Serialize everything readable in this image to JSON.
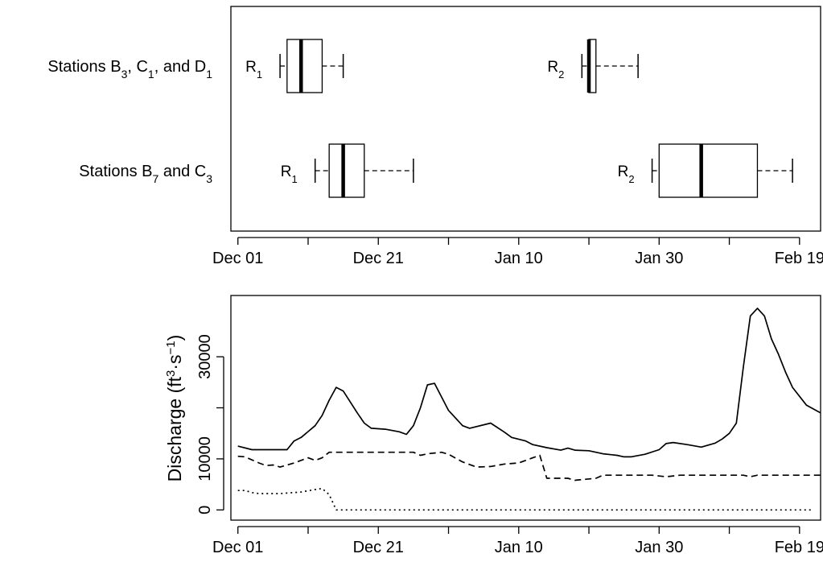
{
  "chart_data": [
    {
      "type": "boxplot",
      "x_axis": {
        "unit": "date",
        "min": "2001-11-30",
        "max": "2002-02-22",
        "ticks": [
          {
            "date": "2001-12-01",
            "label": "Dec 01"
          },
          {
            "date": "2001-12-21",
            "label": "Dec 21"
          },
          {
            "date": "2002-01-10",
            "label": "Jan 10"
          },
          {
            "date": "2002-01-30",
            "label": "Jan 30"
          },
          {
            "date": "2002-02-19",
            "label": "Feb 19"
          }
        ],
        "minor_ticks": [
          "2001-12-11",
          "2001-12-31",
          "2002-01-20",
          "2002-02-09"
        ]
      },
      "groups": [
        {
          "label_main": "Stations B",
          "label_parts": [
            {
              "t": "Stations B"
            },
            {
              "t": "3",
              "sub": true
            },
            {
              "t": ", C"
            },
            {
              "t": "1",
              "sub": true
            },
            {
              "t": ", and D"
            },
            {
              "t": "1",
              "sub": true
            }
          ],
          "boxes": [
            {
              "label_main": "R",
              "label_sub": "1",
              "whisker_low": "2001-12-07",
              "q1": "2001-12-08",
              "median": "2001-12-10",
              "q3": "2001-12-13",
              "whisker_high": "2001-12-16"
            },
            {
              "label_main": "R",
              "label_sub": "2",
              "whisker_low": "2002-01-19",
              "q1": "2002-01-20",
              "median": "2002-01-20",
              "q3": "2002-01-21",
              "whisker_high": "2002-01-27"
            }
          ]
        },
        {
          "label_main": "Stations B",
          "label_parts": [
            {
              "t": "Stations B"
            },
            {
              "t": "7",
              "sub": true
            },
            {
              "t": " and C"
            },
            {
              "t": "3",
              "sub": true
            }
          ],
          "boxes": [
            {
              "label_main": "R",
              "label_sub": "1",
              "whisker_low": "2001-12-12",
              "q1": "2001-12-14",
              "median": "2001-12-16",
              "q3": "2001-12-19",
              "whisker_high": "2001-12-26"
            },
            {
              "label_main": "R",
              "label_sub": "2",
              "whisker_low": "2002-01-29",
              "q1": "2002-01-30",
              "median": "2002-02-05",
              "q3": "2002-02-13",
              "whisker_high": "2002-02-18"
            }
          ]
        }
      ]
    },
    {
      "type": "line",
      "ylabel_main": "Discharge (ft",
      "ylabel_parts": [
        {
          "t": "Discharge (ft"
        },
        {
          "t": "3",
          "sup": true
        },
        {
          "t": "·s"
        },
        {
          "t": "−1",
          "sup": true
        },
        {
          "t": ")"
        }
      ],
      "ylim": [
        -2000,
        42000
      ],
      "yticks": [
        {
          "value": 0,
          "label": "0"
        },
        {
          "value": 10000,
          "label": "10000"
        },
        {
          "value": 30000,
          "label": "30000"
        }
      ],
      "yticks_minor": [
        20000
      ],
      "x_axis": {
        "unit": "date",
        "min": "2001-11-30",
        "max": "2002-02-22",
        "ticks": [
          {
            "date": "2001-12-01",
            "label": "Dec 01"
          },
          {
            "date": "2001-12-21",
            "label": "Dec 21"
          },
          {
            "date": "2002-01-10",
            "label": "Jan 10"
          },
          {
            "date": "2002-01-30",
            "label": "Jan 30"
          },
          {
            "date": "2002-02-19",
            "label": "Feb 19"
          }
        ],
        "minor_ticks": [
          "2001-12-11",
          "2001-12-31",
          "2002-01-20",
          "2002-02-09"
        ]
      },
      "series": [
        {
          "style": "solid",
          "points": [
            [
              "2001-12-01",
              12500
            ],
            [
              "2001-12-03",
              11800
            ],
            [
              "2001-12-05",
              11800
            ],
            [
              "2001-12-08",
              11800
            ],
            [
              "2001-12-09",
              13500
            ],
            [
              "2001-12-10",
              14200
            ],
            [
              "2001-12-12",
              16500
            ],
            [
              "2001-12-13",
              18500
            ],
            [
              "2001-12-14",
              21500
            ],
            [
              "2001-12-15",
              24000
            ],
            [
              "2001-12-16",
              23300
            ],
            [
              "2001-12-18",
              19000
            ],
            [
              "2001-12-19",
              17000
            ],
            [
              "2001-12-20",
              16000
            ],
            [
              "2001-12-22",
              15800
            ],
            [
              "2001-12-24",
              15300
            ],
            [
              "2001-12-25",
              14800
            ],
            [
              "2001-12-26",
              16500
            ],
            [
              "2001-12-27",
              20000
            ],
            [
              "2001-12-28",
              24500
            ],
            [
              "2001-12-29",
              24800
            ],
            [
              "2001-12-31",
              19500
            ],
            [
              "2002-01-02",
              16500
            ],
            [
              "2002-01-03",
              16000
            ],
            [
              "2002-01-06",
              17000
            ],
            [
              "2002-01-08",
              15200
            ],
            [
              "2002-01-09",
              14200
            ],
            [
              "2002-01-11",
              13500
            ],
            [
              "2002-01-12",
              12800
            ],
            [
              "2002-01-14",
              12200
            ],
            [
              "2002-01-16",
              11700
            ],
            [
              "2002-01-17",
              12100
            ],
            [
              "2002-01-18",
              11700
            ],
            [
              "2002-01-20",
              11600
            ],
            [
              "2002-01-22",
              11000
            ],
            [
              "2002-01-24",
              10700
            ],
            [
              "2002-01-25",
              10400
            ],
            [
              "2002-01-26",
              10400
            ],
            [
              "2002-01-28",
              10900
            ],
            [
              "2002-01-30",
              11800
            ],
            [
              "2002-01-31",
              13000
            ],
            [
              "2002-02-01",
              13200
            ],
            [
              "2002-02-03",
              12800
            ],
            [
              "2002-02-05",
              12300
            ],
            [
              "2002-02-06",
              12700
            ],
            [
              "2002-02-07",
              13100
            ],
            [
              "2002-02-08",
              13900
            ],
            [
              "2002-02-09",
              15000
            ],
            [
              "2002-02-10",
              17000
            ],
            [
              "2002-02-11",
              28000
            ],
            [
              "2002-02-12",
              38000
            ],
            [
              "2002-02-13",
              39500
            ],
            [
              "2002-02-14",
              38000
            ],
            [
              "2002-02-15",
              33500
            ],
            [
              "2002-02-16",
              30500
            ],
            [
              "2002-02-17",
              27000
            ],
            [
              "2002-02-18",
              24000
            ],
            [
              "2002-02-20",
              20500
            ],
            [
              "2002-02-22",
              19000
            ],
            [
              "2002-02-23",
              19400
            ],
            [
              "2002-02-24",
              20200
            ]
          ]
        },
        {
          "style": "dashed",
          "points": [
            [
              "2001-12-01",
              10500
            ],
            [
              "2001-12-02",
              10400
            ],
            [
              "2001-12-04",
              9200
            ],
            [
              "2001-12-05",
              8700
            ],
            [
              "2001-12-06",
              8800
            ],
            [
              "2001-12-07",
              8400
            ],
            [
              "2001-12-09",
              9200
            ],
            [
              "2001-12-11",
              10200
            ],
            [
              "2001-12-12",
              9700
            ],
            [
              "2001-12-13",
              10200
            ],
            [
              "2001-12-14",
              11300
            ],
            [
              "2001-12-20",
              11300
            ],
            [
              "2001-12-23",
              11300
            ],
            [
              "2001-12-26",
              11300
            ],
            [
              "2001-12-27",
              10700
            ],
            [
              "2001-12-28",
              11000
            ],
            [
              "2001-12-30",
              11300
            ],
            [
              "2001-12-31",
              10900
            ],
            [
              "2002-01-02",
              9400
            ],
            [
              "2002-01-04",
              8400
            ],
            [
              "2002-01-06",
              8500
            ],
            [
              "2002-01-08",
              9000
            ],
            [
              "2002-01-10",
              9200
            ],
            [
              "2002-01-12",
              10200
            ],
            [
              "2002-01-13",
              10700
            ],
            [
              "2002-01-14",
              6200
            ],
            [
              "2002-01-17",
              6200
            ],
            [
              "2002-01-18",
              5800
            ],
            [
              "2002-01-21",
              6200
            ],
            [
              "2002-01-22",
              6800
            ],
            [
              "2002-01-24",
              6800
            ],
            [
              "2002-01-29",
              6800
            ],
            [
              "2002-01-31",
              6500
            ],
            [
              "2002-02-02",
              6800
            ],
            [
              "2002-02-11",
              6800
            ],
            [
              "2002-02-12",
              6500
            ],
            [
              "2002-02-13",
              6800
            ],
            [
              "2002-02-24",
              6800
            ]
          ]
        },
        {
          "style": "dotted",
          "points": [
            [
              "2001-12-01",
              3800
            ],
            [
              "2001-12-02",
              3800
            ],
            [
              "2001-12-03",
              3400
            ],
            [
              "2001-12-04",
              3200
            ],
            [
              "2001-12-07",
              3200
            ],
            [
              "2001-12-10",
              3500
            ],
            [
              "2001-12-12",
              4000
            ],
            [
              "2001-12-13",
              4200
            ],
            [
              "2001-12-14",
              3000
            ],
            [
              "2001-12-15",
              0
            ],
            [
              "2002-02-21",
              0
            ]
          ]
        }
      ]
    }
  ]
}
